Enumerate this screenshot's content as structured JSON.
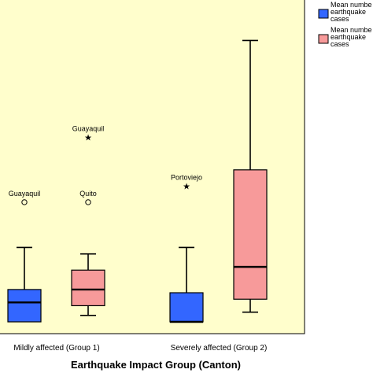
{
  "chart_data": {
    "type": "boxplot",
    "xlabel": "Earthquake Impact Group (Canton)",
    "ylabel": "",
    "ylim": [
      0,
      100
    ],
    "categories": [
      "Mildly affected (Group 1)",
      "Severely affected (Group 2)"
    ],
    "series": [
      {
        "name": "Mean number of earthquake cases",
        "color": "#3366ff",
        "boxes": [
          {
            "category": "Mildly affected (Group 1)",
            "whisker_low": 0,
            "q1": 0,
            "median": 6,
            "q3": 10,
            "whisker_high": 23,
            "outliers": [
              {
                "value": 37,
                "label": "Guayaquil",
                "marker": "circle"
              }
            ]
          },
          {
            "category": "Severely affected (Group 2)",
            "whisker_low": 0,
            "q1": 0,
            "median": 0,
            "q3": 9,
            "whisker_high": 23,
            "outliers": [
              {
                "value": 42,
                "label": "Portoviejo",
                "marker": "star"
              }
            ]
          }
        ]
      },
      {
        "name": "Mean number of earthquake cases",
        "color": "#f79a9a",
        "boxes": [
          {
            "category": "Mildly affected (Group 1)",
            "whisker_low": 2,
            "q1": 5,
            "median": 10,
            "q3": 16,
            "whisker_high": 21,
            "outliers": [
              {
                "value": 37,
                "label": "Quito",
                "marker": "circle"
              },
              {
                "value": 57,
                "label": "Guayaquil",
                "marker": "star"
              }
            ]
          },
          {
            "category": "Severely affected (Group 2)",
            "whisker_low": 3,
            "q1": 7,
            "median": 17,
            "q3": 47,
            "whisker_high": 87,
            "outliers": []
          }
        ]
      }
    ],
    "legend": {
      "placement": "top-right, outside plot",
      "entries": [
        {
          "lines": [
            "Mean numbe",
            "earthquake",
            "cases"
          ],
          "color": "#3366ff"
        },
        {
          "lines": [
            "Mean numbe",
            "earthquake",
            "cases"
          ],
          "color": "#f79a9a"
        }
      ]
    },
    "colors": {
      "plot_background": "#fffecc",
      "whisker": "#000000"
    }
  }
}
